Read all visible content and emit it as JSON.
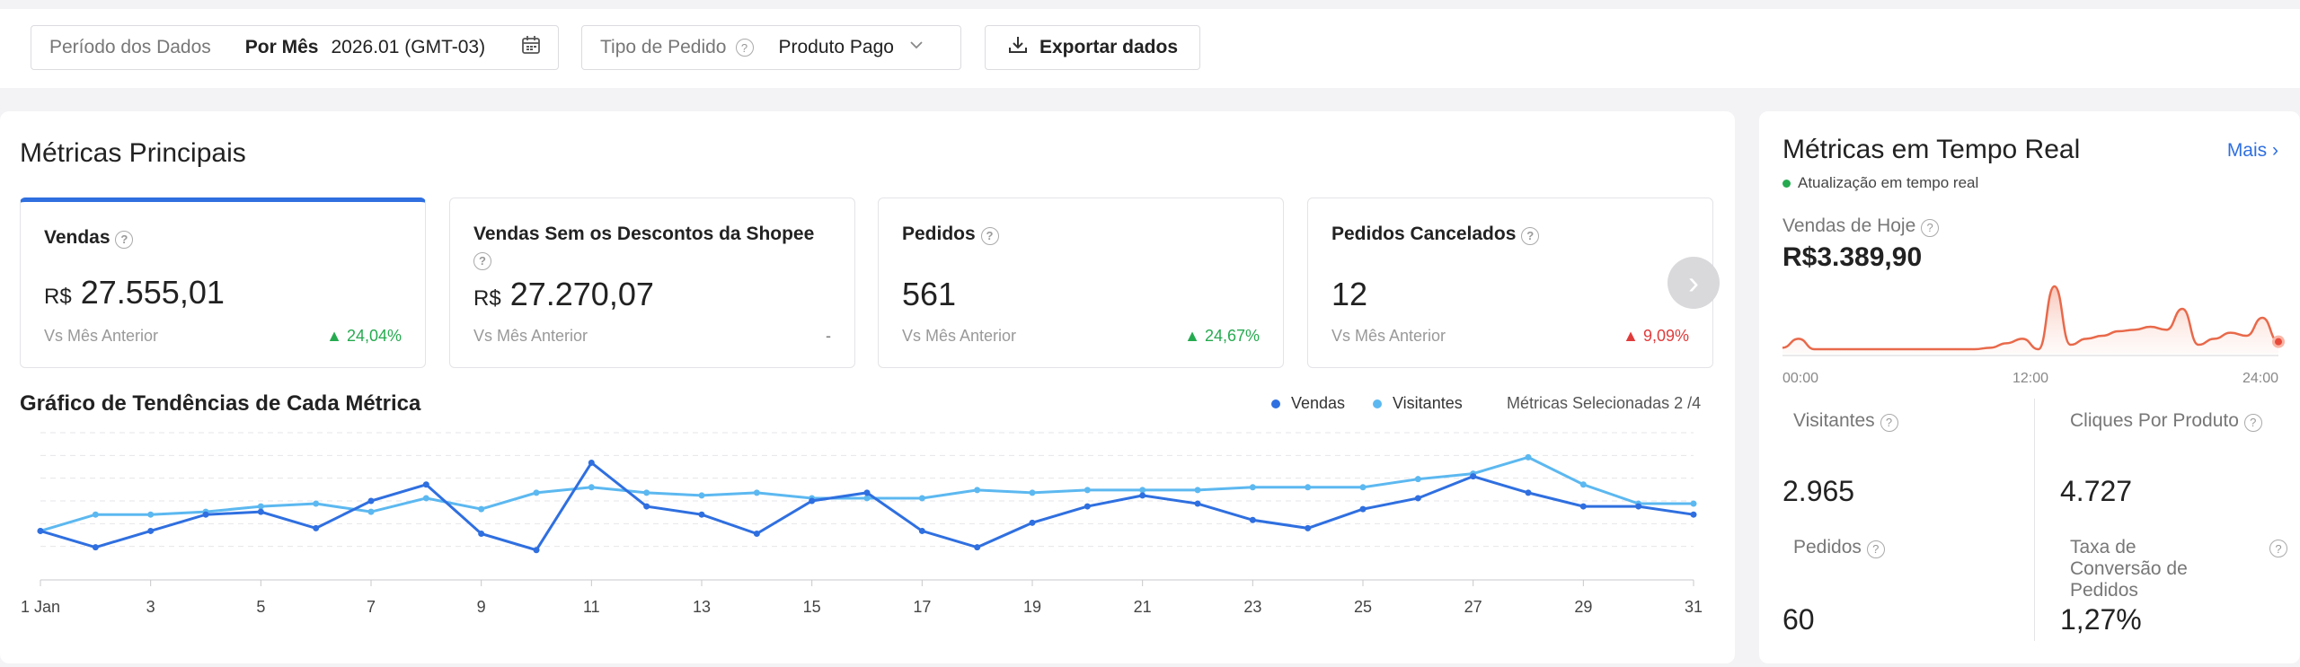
{
  "filters": {
    "period_label": "Período dos Dados",
    "period_mode": "Por Mês",
    "period_value": "2026.01 (GMT-03)",
    "order_type_label": "Tipo de Pedido",
    "order_type_value": "Produto Pago",
    "export_label": "Exportar dados"
  },
  "main": {
    "title": "Métricas Principais",
    "cards": [
      {
        "title": "Vendas",
        "currency": "R$",
        "value": "27.555,01",
        "cmp": "Vs Mês Anterior",
        "change": "24,04%",
        "dir": "up"
      },
      {
        "title": "Vendas Sem os Descontos da Shopee",
        "currency": "R$",
        "value": "27.270,07",
        "cmp": "Vs Mês Anterior",
        "change": "-",
        "dir": "none"
      },
      {
        "title": "Pedidos",
        "currency": "",
        "value": "561",
        "cmp": "Vs Mês Anterior",
        "change": "24,67%",
        "dir": "up"
      },
      {
        "title": "Pedidos Cancelados",
        "currency": "",
        "value": "12",
        "cmp": "Vs Mês Anterior",
        "change": "9,09%",
        "dir": "down"
      }
    ],
    "trend_title": "Gráfico de Tendências de Cada Métrica",
    "legend_vendas": "Vendas",
    "legend_visitantes": "Visitantes",
    "selected_metrics": "Métricas Selecionadas 2 /4"
  },
  "chart_data": {
    "type": "line",
    "x_tick_labels": [
      "1 Jan",
      "3",
      "5",
      "7",
      "9",
      "11",
      "13",
      "15",
      "17",
      "19",
      "21",
      "23",
      "25",
      "27",
      "29",
      "31"
    ],
    "x": [
      1,
      2,
      3,
      4,
      5,
      6,
      7,
      8,
      9,
      10,
      11,
      12,
      13,
      14,
      15,
      16,
      17,
      18,
      19,
      20,
      21,
      22,
      23,
      24,
      25,
      26,
      27,
      28,
      29,
      30,
      31
    ],
    "series": [
      {
        "name": "Vendas",
        "color": "#2f6fe0",
        "values": [
          28,
          16,
          28,
          40,
          42,
          30,
          50,
          62,
          26,
          14,
          78,
          46,
          40,
          26,
          50,
          56,
          28,
          16,
          34,
          46,
          54,
          48,
          36,
          30,
          44,
          52,
          68,
          56,
          46,
          46,
          40
        ]
      },
      {
        "name": "Visitantes",
        "color": "#5cb8f0",
        "values": [
          28,
          40,
          40,
          42,
          46,
          48,
          42,
          52,
          44,
          56,
          60,
          56,
          54,
          56,
          52,
          52,
          52,
          58,
          56,
          58,
          58,
          58,
          60,
          60,
          60,
          66,
          70,
          82,
          62,
          48,
          48
        ]
      }
    ],
    "ylim": [
      0,
      100
    ],
    "grid": true,
    "legend": "top-right"
  },
  "realtime": {
    "title": "Métricas em Tempo Real",
    "more": "Mais",
    "update_note": "Atualização em tempo real",
    "today_label": "Vendas de Hoje",
    "today_value": "R$3.389,90",
    "spark_ticks": [
      "00:00",
      "12:00",
      "24:00"
    ],
    "spark_values": [
      4,
      10,
      3,
      3,
      3,
      3,
      3,
      3,
      3,
      3,
      3,
      3,
      3,
      4,
      7,
      10,
      3,
      45,
      6,
      10,
      12,
      15,
      16,
      18,
      16,
      30,
      6,
      10,
      14,
      12,
      24,
      8
    ],
    "stats": [
      {
        "label": "Visitantes",
        "value": "2.965"
      },
      {
        "label": "Cliques Por Produto",
        "value": "4.727"
      },
      {
        "label": "Pedidos",
        "value": "60"
      },
      {
        "label": "Taxa de Conversão de Pedidos",
        "value": "1,27%"
      }
    ]
  },
  "colors": {
    "accent": "#2f6fe0",
    "up": "#26aa50",
    "down": "#e03b3b",
    "live": "#26aa50",
    "spark": "#e8694a"
  }
}
